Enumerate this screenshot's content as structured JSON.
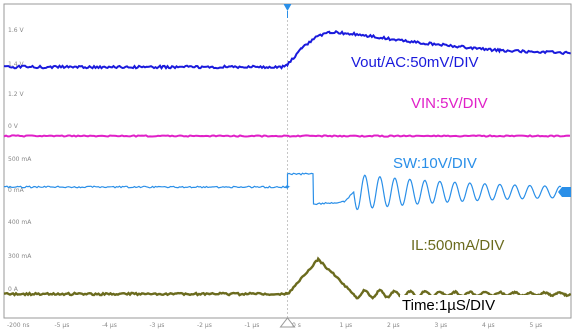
{
  "chart_data": {
    "type": "line",
    "title": "",
    "xlabel": "",
    "ylabel": "",
    "time_scale": "Time:1µS/DIV",
    "x_ticks": [
      "-200 ns",
      "-5 µs",
      "-4 µs",
      "-3 µs",
      "-2 µs",
      "-1 µs",
      "0 s",
      "1 µs",
      "2 µs",
      "3 µs",
      "4 µs",
      "5 µs"
    ],
    "y_ticks": [
      {
        "text": "1.6 V"
      },
      {
        "text": "1.4 V"
      },
      {
        "text": "1.2 V"
      },
      {
        "text": "0 V"
      },
      {
        "text": "500 mA"
      },
      {
        "text": "0 mA"
      },
      {
        "text": "400 mA"
      },
      {
        "text": "300 mA"
      },
      {
        "text": "0 A"
      }
    ],
    "xlim": [
      -6,
      6
    ],
    "trigger_time": 0,
    "series": [
      {
        "name": "Vout/AC:50mV/DIV",
        "color": "#1a1adc",
        "x": [
          -6,
          -0.1,
          0,
          0.3,
          0.6,
          0.9,
          1.5,
          2.5,
          3.5,
          4.5,
          6
        ],
        "y": [
          1.5,
          1.5,
          1.51,
          1.58,
          1.63,
          1.65,
          1.64,
          1.61,
          1.59,
          1.57,
          1.56
        ]
      },
      {
        "name": "VIN:5V/DIV",
        "color": "#e020c8",
        "x": [
          -6,
          6
        ],
        "y": [
          12,
          12
        ]
      },
      {
        "name": "SW:10V/DIV",
        "color": "#2a8fe8",
        "x": [
          -6,
          0,
          0,
          0.55,
          0.55,
          1.2,
          1.4
        ],
        "y": [
          5,
          5,
          18,
          18,
          -12,
          -10,
          0
        ]
      },
      {
        "name": "IL:500mA/DIV",
        "color": "#6b6b1e",
        "x": [
          -6,
          0,
          0.65,
          1.4,
          6
        ],
        "y": [
          0,
          0,
          0.6,
          0,
          0
        ]
      }
    ],
    "grid": false
  }
}
